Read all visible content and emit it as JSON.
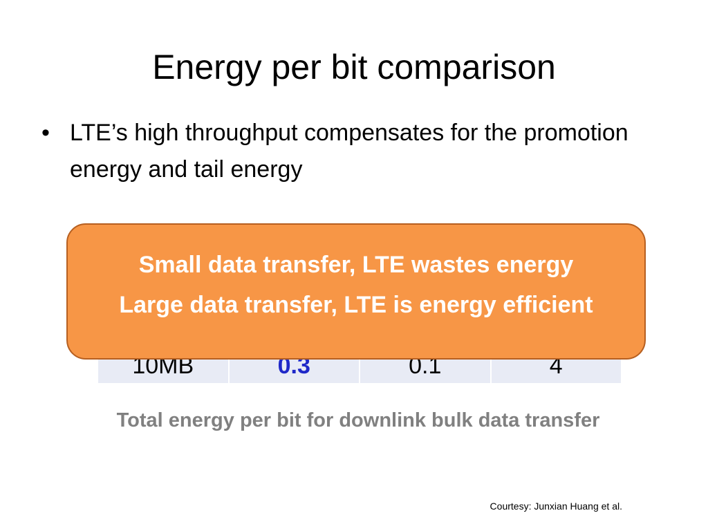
{
  "slide": {
    "title": "Energy per bit comparison",
    "bullets": [
      "LTE’s high throughput compensates for the promotion energy and tail energy"
    ]
  },
  "table": {
    "visible_row": {
      "label": "10MB",
      "values": [
        "0.3",
        "0.1",
        "4"
      ],
      "highlight": "0.3"
    }
  },
  "caption": "Total energy per bit for downlink bulk data transfer",
  "callout": {
    "lines": [
      "Small data transfer, LTE wastes energy",
      "Large data transfer, LTE is energy efficient"
    ]
  },
  "footnote": "Courtesy: Junxian Huang et al.",
  "colors": {
    "callout_fill": "#f79646",
    "callout_border": "#b65f20",
    "highlight_text": "#1f28c8",
    "caption_text": "#808080",
    "table_cell": "#e8ebf5"
  }
}
